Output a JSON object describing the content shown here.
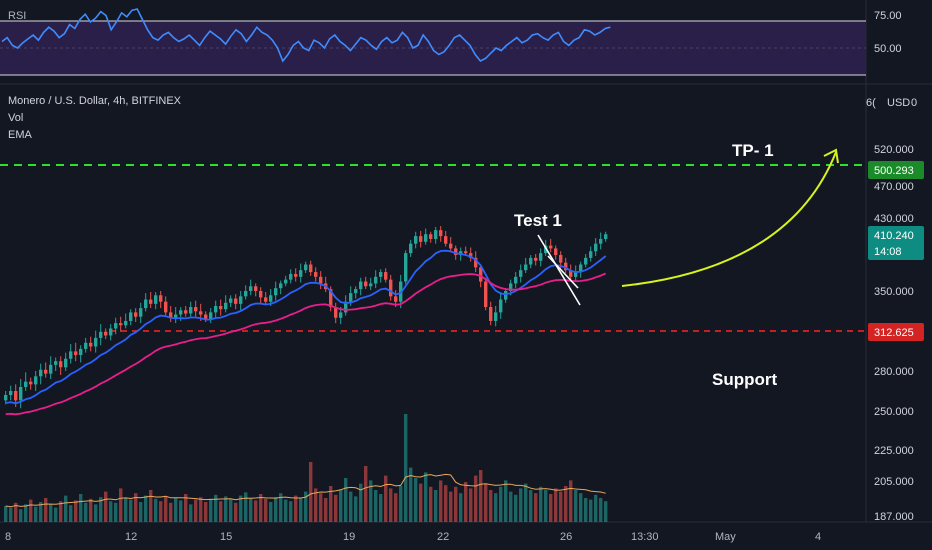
{
  "rsi_pane": {
    "label": "RSI",
    "ticks": [
      "75.00",
      "50.00"
    ],
    "series": [
      55,
      58,
      52,
      50,
      54,
      57,
      60,
      56,
      62,
      66,
      63,
      58,
      61,
      68,
      65,
      72,
      76,
      70,
      73,
      78,
      75,
      64,
      70,
      77,
      74,
      79,
      80,
      72,
      64,
      58,
      56,
      60,
      62,
      58,
      55,
      57,
      60,
      56,
      52,
      58,
      63,
      60,
      57,
      53,
      59,
      64,
      61,
      55,
      60,
      66,
      62,
      60,
      56,
      50,
      40,
      45,
      52,
      55,
      50,
      48,
      56,
      54,
      50,
      57,
      60,
      55,
      52,
      48,
      53,
      58,
      56,
      52,
      49,
      55,
      58,
      54,
      56,
      62,
      58,
      50,
      52,
      60,
      55,
      48,
      45,
      47,
      52,
      58,
      60,
      56,
      52,
      45,
      40,
      42,
      46,
      50,
      48,
      52,
      55,
      58,
      54,
      56,
      60,
      61,
      58,
      56,
      60,
      62,
      55,
      52,
      56,
      58,
      64,
      63,
      60,
      62,
      65,
      66
    ]
  },
  "legend": {
    "symbol": "Monero / U.S. Dollar, 4h, BITFINEX",
    "vol": "Vol",
    "ema": "EMA",
    "currency": "USD",
    "partial_tick": "6("
  },
  "price_axis": {
    "ticks": [
      "520.000",
      "470.000",
      "430.000",
      "350.000",
      "280.000",
      "250.000",
      "225.000",
      "205.000",
      "187.000"
    ]
  },
  "time_axis": {
    "ticks": [
      "8",
      "12",
      "15",
      "19",
      "22",
      "26",
      "13:30",
      "May",
      "4"
    ]
  },
  "annotations": {
    "tp_label": "TP- 1",
    "test_label": "Test 1",
    "support_label": "Support",
    "tp_price": "500.293",
    "support_price": "312.625",
    "current_price": "410.240",
    "countdown": "14:08"
  },
  "colors": {
    "background": "#131722",
    "up": "#26a69a",
    "down": "#ef5350",
    "ema_fast": "#2962ff",
    "ema_slow": "#e91e8c",
    "tp_line": "#2ee02e",
    "support_line": "#ff2222",
    "arrow": "#d6f21f",
    "rsi_line": "#3f8cff",
    "rsi_band": "#2a1f48"
  },
  "chart_data": {
    "type": "candlestick",
    "title": "Monero / U.S. Dollar, 4h, BITFINEX",
    "ylim": [
      187,
      600
    ],
    "close": [
      262,
      265,
      258,
      268,
      272,
      270,
      276,
      281,
      278,
      285,
      288,
      283,
      290,
      296,
      293,
      298,
      303,
      300,
      307,
      312,
      309,
      315,
      320,
      318,
      322,
      330,
      326,
      334,
      342,
      338,
      346,
      340,
      330,
      325,
      328,
      332,
      329,
      335,
      331,
      328,
      324,
      330,
      336,
      333,
      339,
      343,
      338,
      345,
      350,
      355,
      350,
      344,
      340,
      346,
      353,
      358,
      362,
      368,
      365,
      372,
      378,
      370,
      365,
      358,
      352,
      335,
      325,
      330,
      340,
      348,
      352,
      360,
      355,
      358,
      365,
      370,
      362,
      345,
      340,
      360,
      390,
      400,
      408,
      402,
      410,
      405,
      415,
      408,
      400,
      395,
      388,
      392,
      390,
      385,
      375,
      360,
      335,
      322,
      330,
      342,
      350,
      358,
      365,
      372,
      378,
      385,
      382,
      390,
      398,
      395,
      388,
      380,
      372,
      365,
      370,
      378,
      385,
      392,
      400,
      405,
      410
    ],
    "volume": [
      20,
      18,
      24,
      16,
      22,
      28,
      19,
      25,
      30,
      22,
      18,
      26,
      33,
      21,
      27,
      35,
      24,
      29,
      22,
      31,
      38,
      26,
      24,
      42,
      30,
      28,
      36,
      25,
      33,
      40,
      29,
      26,
      32,
      24,
      30,
      27,
      35,
      22,
      28,
      31,
      25,
      29,
      34,
      26,
      32,
      28,
      24,
      33,
      37,
      30,
      27,
      35,
      29,
      25,
      31,
      36,
      28,
      26,
      33,
      30,
      38,
      75,
      42,
      36,
      30,
      45,
      34,
      40,
      55,
      38,
      32,
      48,
      70,
      52,
      40,
      35,
      58,
      42,
      36,
      45,
      135,
      68,
      55,
      48,
      62,
      44,
      40,
      52,
      46,
      38,
      44,
      36,
      50,
      42,
      58,
      65,
      48,
      40,
      36,
      44,
      52,
      38,
      34,
      42,
      48,
      40,
      36,
      44,
      40,
      35,
      42,
      38,
      45,
      52,
      40,
      36,
      30,
      28,
      34,
      30,
      26
    ],
    "ticks_price": [
      520,
      470,
      430,
      350,
      280,
      250,
      225,
      205,
      187
    ],
    "levels": [
      {
        "name": "TP- 1",
        "value": 500.293
      },
      {
        "name": "Support",
        "value": 312.625
      }
    ],
    "last_price": 410.24
  }
}
